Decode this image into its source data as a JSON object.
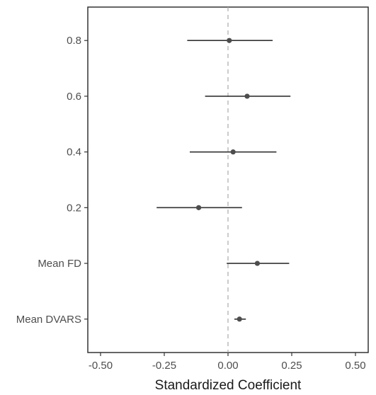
{
  "chart_data": {
    "type": "forest",
    "title": "",
    "xlabel": "Standardized Coefficient",
    "ylabel": "",
    "xlim": [
      -0.55,
      0.55
    ],
    "x_ticks": [
      -0.5,
      -0.25,
      0.0,
      0.25,
      0.5
    ],
    "x_tick_labels": [
      "-0.50",
      "-0.25",
      "0.00",
      "0.25",
      "0.50"
    ],
    "reference_line": 0.0,
    "grid": false,
    "point_color": "#4d4d4d",
    "line_color": "#333333",
    "reference_color": "#aaaaaa",
    "categories": [
      "0.8",
      "0.6",
      "0.4",
      "0.2",
      "Mean FD",
      "Mean DVARS"
    ],
    "estimates": [
      0.005,
      0.075,
      0.02,
      -0.115,
      0.115,
      0.045
    ],
    "ci_lower": [
      -0.16,
      -0.09,
      -0.15,
      -0.28,
      -0.005,
      0.025
    ],
    "ci_upper": [
      0.175,
      0.245,
      0.19,
      0.055,
      0.24,
      0.07
    ]
  }
}
